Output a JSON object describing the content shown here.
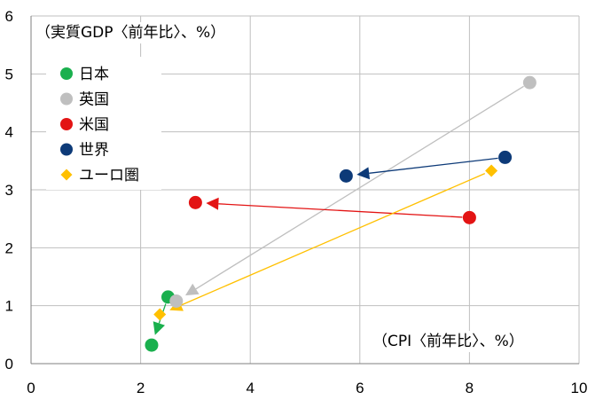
{
  "chart_data": {
    "type": "scatter",
    "title": "",
    "ylabel": "（実質GDP〈前年比〉、%）",
    "xlabel": "（CPI〈前年比〉、%）",
    "xlim": [
      0,
      10
    ],
    "ylim": [
      0,
      6
    ],
    "xticks": [
      "0",
      "2",
      "4",
      "6",
      "8",
      "10"
    ],
    "yticks": [
      "0",
      "1",
      "2",
      "3",
      "4",
      "5",
      "6"
    ],
    "grid": true,
    "legend_position": "top-left",
    "series": [
      {
        "name": "日本",
        "color": "#1ab04e",
        "marker": "circle",
        "from": [
          2.5,
          1.15
        ],
        "to": [
          2.2,
          0.32
        ]
      },
      {
        "name": "英国",
        "color": "#bfbfbf",
        "marker": "circle",
        "from": [
          9.1,
          4.85
        ],
        "to": [
          2.65,
          1.08
        ]
      },
      {
        "name": "米国",
        "color": "#e31414",
        "marker": "circle",
        "from": [
          8.0,
          2.52
        ],
        "to": [
          3.0,
          2.78
        ]
      },
      {
        "name": "世界",
        "color": "#0d3a78",
        "marker": "circle",
        "from": [
          8.65,
          3.56
        ],
        "to": [
          5.75,
          3.24
        ]
      },
      {
        "name": "ユーロ圏",
        "color": "#ffc000",
        "marker": "diamond",
        "from": [
          8.4,
          3.33
        ],
        "to": [
          2.35,
          0.85
        ]
      }
    ]
  }
}
